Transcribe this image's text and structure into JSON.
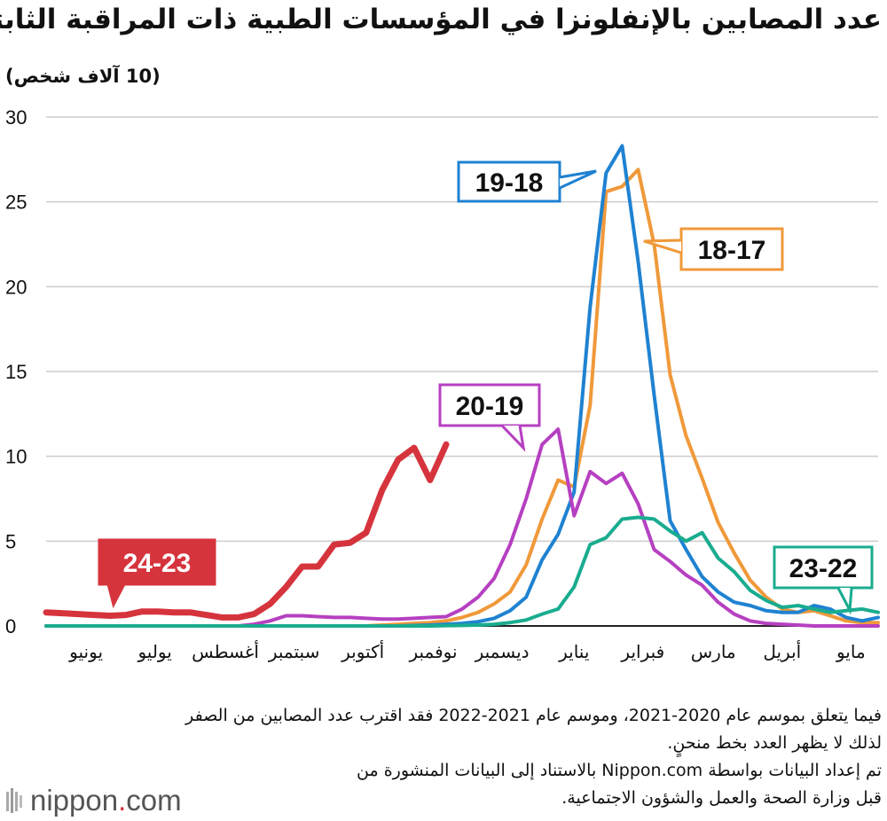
{
  "title": "عدد المصابين بالإنفلونزا في المؤسسات الطبية ذات المراقبة الثابتة",
  "unit_label": "(10 آلاف شخص)",
  "notes": [
    "فيما يتعلق بموسم عام 2020-2021، وموسم عام 2021-2022 فقد اقترب عدد المصابين من الصفر",
    "لذلك لا يظهر العدد بخط منحنٍ.",
    "تم إعداد البيانات بواسطة Nippon.com بالاستناد إلى البيانات المنشورة من",
    "قبل وزارة الصحة والعمل والشؤون الاجتماعية."
  ],
  "logo": {
    "name": "nippon",
    "dot": ".",
    "suffix": "com"
  },
  "chart_data": {
    "type": "line",
    "title": "عدد المصابين بالإنفلونزا في المؤسسات الطبية ذات المراقبة الثابتة",
    "ylabel": "(10 آلاف شخص)",
    "ylim": [
      0,
      30
    ],
    "yticks": [
      0,
      5,
      10,
      15,
      20,
      25,
      30
    ],
    "xlim": [
      0,
      52
    ],
    "grid": true,
    "months": [
      "يونيو",
      "يوليو",
      "أغسطس",
      "سبتمبر",
      "أكتوبر",
      "نوفمبر",
      "ديسمبر",
      "يناير",
      "فبراير",
      "مارس",
      "أبريل",
      "مايو"
    ],
    "month_positions": [
      2.5,
      6.8,
      11.2,
      15.5,
      19.8,
      24.2,
      28.5,
      33.0,
      37.3,
      41.7,
      46.0,
      50.3
    ],
    "series": [
      {
        "name": "18-17",
        "color": "#f0993a",
        "width": 4,
        "x": [
          0,
          4,
          8,
          12,
          13,
          14,
          15,
          16,
          17,
          18,
          19,
          20,
          21,
          22,
          23,
          24,
          25,
          26,
          27,
          28,
          29,
          30,
          31,
          32,
          33,
          34,
          35,
          36,
          37,
          38,
          39,
          40,
          41,
          42,
          43,
          44,
          45,
          46,
          47,
          48,
          49,
          50,
          51,
          52
        ],
        "y": [
          0,
          0,
          0,
          0,
          0,
          0,
          0,
          0,
          0,
          0,
          0,
          0,
          0.05,
          0.1,
          0.15,
          0.2,
          0.3,
          0.5,
          0.8,
          1.3,
          2.0,
          3.6,
          6.3,
          8.6,
          8.2,
          13.0,
          25.6,
          25.9,
          26.9,
          22.5,
          14.8,
          11.2,
          8.7,
          6.1,
          4.3,
          2.7,
          1.7,
          1.0,
          0.8,
          0.9,
          0.6,
          0.3,
          0.2,
          0.2
        ]
      },
      {
        "name": "19-18",
        "color": "#1f82d1",
        "width": 4,
        "x": [
          0,
          4,
          8,
          12,
          14,
          16,
          18,
          20,
          22,
          24,
          25,
          26,
          27,
          28,
          29,
          30,
          31,
          32,
          33,
          34,
          35,
          36,
          37,
          38,
          39,
          40,
          41,
          42,
          43,
          44,
          45,
          46,
          47,
          48,
          49,
          50,
          51,
          52
        ],
        "y": [
          0,
          0,
          0,
          0,
          0,
          0,
          0,
          0,
          0,
          0.05,
          0.1,
          0.15,
          0.25,
          0.45,
          0.9,
          1.7,
          3.9,
          5.4,
          7.9,
          18.8,
          26.7,
          28.3,
          21.5,
          13.6,
          6.2,
          4.5,
          2.9,
          2.0,
          1.4,
          1.2,
          0.9,
          0.8,
          0.8,
          1.2,
          1.0,
          0.5,
          0.3,
          0.5
        ]
      },
      {
        "name": "20-19",
        "color": "#b640c1",
        "width": 4,
        "x": [
          0,
          4,
          8,
          12,
          13,
          14,
          15,
          16,
          17,
          18,
          19,
          20,
          21,
          22,
          23,
          24,
          25,
          26,
          27,
          28,
          29,
          30,
          31,
          32,
          33,
          34,
          35,
          36,
          37,
          38,
          39,
          40,
          41,
          42,
          43,
          44,
          45,
          46,
          47,
          48,
          49,
          50,
          51,
          52
        ],
        "y": [
          0,
          0,
          0,
          0,
          0.1,
          0.3,
          0.6,
          0.6,
          0.55,
          0.5,
          0.5,
          0.45,
          0.4,
          0.4,
          0.45,
          0.5,
          0.55,
          1.0,
          1.7,
          2.8,
          4.8,
          7.5,
          10.7,
          11.6,
          6.5,
          9.1,
          8.4,
          9.0,
          7.2,
          4.5,
          3.8,
          3.0,
          2.4,
          1.4,
          0.7,
          0.3,
          0.15,
          0.1,
          0.05,
          0,
          0,
          0,
          0,
          0
        ]
      },
      {
        "name": "23-22",
        "color": "#1aac8f",
        "width": 4,
        "x": [
          0,
          4,
          8,
          12,
          16,
          20,
          24,
          27,
          28,
          29,
          30,
          31,
          32,
          33,
          34,
          35,
          36,
          37,
          38,
          39,
          40,
          41,
          42,
          43,
          44,
          45,
          46,
          47,
          48,
          49,
          50,
          51,
          52
        ],
        "y": [
          0,
          0,
          0,
          0,
          0,
          0,
          0,
          0.05,
          0.1,
          0.2,
          0.35,
          0.7,
          1.0,
          2.3,
          4.8,
          5.2,
          6.3,
          6.4,
          6.3,
          5.6,
          5.0,
          5.5,
          4.0,
          3.2,
          2.1,
          1.5,
          1.1,
          1.2,
          1.0,
          0.8,
          0.9,
          1.0,
          0.8
        ]
      },
      {
        "name": "24-23",
        "color": "#d6343d",
        "width": 7,
        "x": [
          0,
          1,
          2,
          3,
          4,
          5,
          6,
          7,
          8,
          9,
          10,
          11,
          12,
          13,
          14,
          15,
          16,
          17,
          18,
          19,
          20,
          21,
          22,
          23,
          24,
          25,
          26
        ],
        "y": [
          0.8,
          0.75,
          0.7,
          0.65,
          0.6,
          0.65,
          0.85,
          0.85,
          0.8,
          0.8,
          0.65,
          0.5,
          0.5,
          0.7,
          1.3,
          2.3,
          3.5,
          3.5,
          4.8,
          4.9,
          5.5,
          8.0,
          9.8,
          10.5,
          8.6,
          10.7,
          null
        ]
      }
    ]
  },
  "tags": [
    {
      "series": "19-18",
      "label": "19-18",
      "color": "#1f82d1",
      "text_color": "#111111"
    },
    {
      "series": "18-17",
      "label": "18-17",
      "color": "#f0993a",
      "text_color": "#111111"
    },
    {
      "series": "20-19",
      "label": "20-19",
      "color": "#b640c1",
      "text_color": "#111111"
    },
    {
      "series": "23-22",
      "label": "23-22",
      "color": "#1aac8f",
      "text_color": "#111111"
    },
    {
      "series": "24-23",
      "label": "24-23",
      "color": "#d6343d",
      "text_color": "#ffffff"
    }
  ]
}
